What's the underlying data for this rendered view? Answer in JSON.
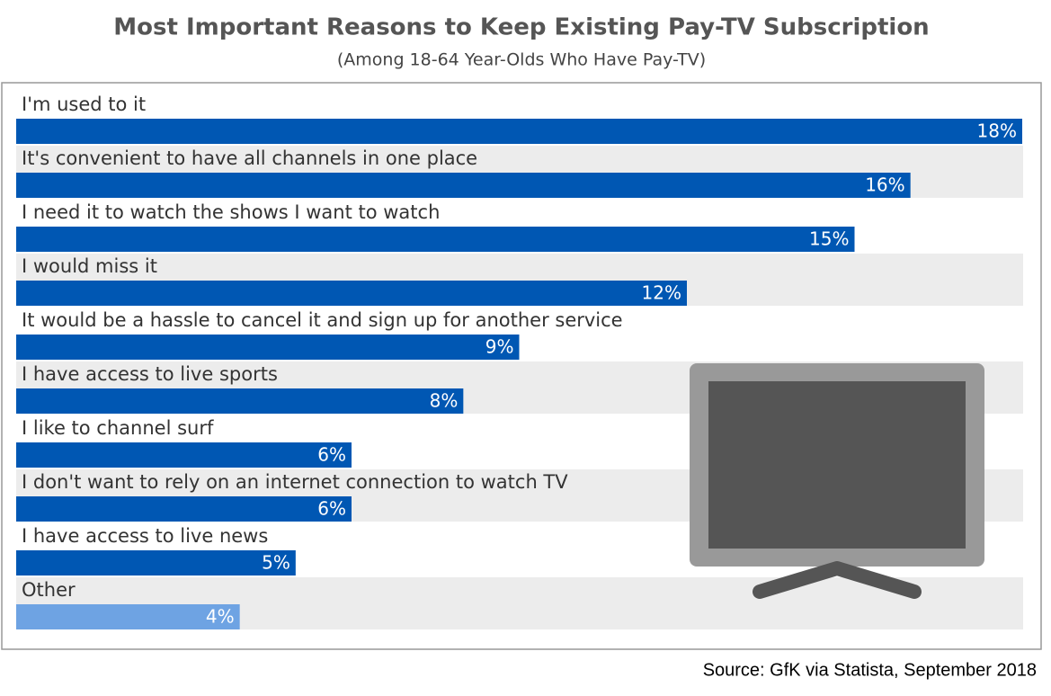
{
  "chart_data": {
    "type": "bar",
    "orientation": "horizontal",
    "title": "Most Important Reasons to Keep Existing Pay-TV Subscription",
    "subtitle": "(Among 18-64 Year-Olds Who Have Pay-TV)",
    "categories": [
      "I'm used to it",
      "It's convenient to have all channels in one place",
      "I need it to watch the shows I want to watch",
      "I would miss it",
      "It would be a hassle to cancel it and sign up for another service",
      "I have access to live sports",
      "I like to channel surf",
      "I don't want to rely on an internet connection to watch TV",
      "I have access to live news",
      "Other"
    ],
    "values": [
      18,
      16,
      15,
      12,
      9,
      8,
      6,
      6,
      5,
      4
    ],
    "value_labels": [
      "18%",
      "16%",
      "15%",
      "12%",
      "9%",
      "8%",
      "6%",
      "6%",
      "5%",
      "4%"
    ],
    "colors": [
      "#0057b3",
      "#0057b3",
      "#0057b3",
      "#0057b3",
      "#0057b3",
      "#0057b3",
      "#0057b3",
      "#0057b3",
      "#0057b3",
      "#6ea3e3"
    ],
    "source": "Source:  GfK via Statista, September 2018"
  }
}
